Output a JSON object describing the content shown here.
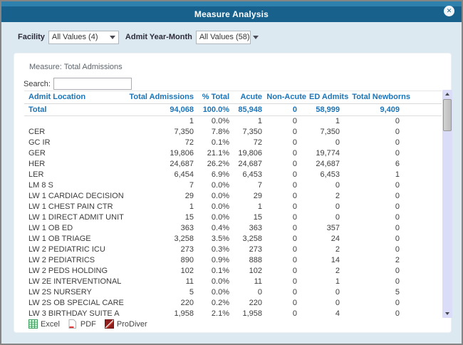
{
  "window": {
    "title": "Measure Analysis"
  },
  "filters": {
    "facility": {
      "label": "Facility",
      "value": "All Values (4)"
    },
    "admit_year_month": {
      "label": "Admit Year-Month",
      "value": "All Values (58)"
    }
  },
  "panel": {
    "measure_label": "Measure: Total Admissions",
    "search_label": "Search:",
    "search_value": ""
  },
  "table": {
    "columns": [
      "Admit Location",
      "Total Admissions",
      "% Total",
      "Acute",
      "Non-Acute",
      "ED Admits",
      "Total Newborns"
    ],
    "total_row": [
      "Total",
      "94,068",
      "100.0%",
      "85,948",
      "0",
      "58,999",
      "9,409"
    ],
    "rows": [
      [
        "",
        "1",
        "0.0%",
        "1",
        "0",
        "1",
        "0"
      ],
      [
        "CER",
        "7,350",
        "7.8%",
        "7,350",
        "0",
        "7,350",
        "0"
      ],
      [
        "GC IR",
        "72",
        "0.1%",
        "72",
        "0",
        "0",
        "0"
      ],
      [
        "GER",
        "19,806",
        "21.1%",
        "19,806",
        "0",
        "19,774",
        "0"
      ],
      [
        "HER",
        "24,687",
        "26.2%",
        "24,687",
        "0",
        "24,687",
        "6"
      ],
      [
        "LER",
        "6,454",
        "6.9%",
        "6,453",
        "0",
        "6,453",
        "1"
      ],
      [
        "LM 8 S",
        "7",
        "0.0%",
        "7",
        "0",
        "0",
        "0"
      ],
      [
        "LW 1 CARDIAC DECISION",
        "29",
        "0.0%",
        "29",
        "0",
        "2",
        "0"
      ],
      [
        "LW 1 CHEST PAIN CTR",
        "1",
        "0.0%",
        "1",
        "0",
        "0",
        "0"
      ],
      [
        "LW 1 DIRECT ADMIT UNIT",
        "15",
        "0.0%",
        "15",
        "0",
        "0",
        "0"
      ],
      [
        "LW 1 OB ED",
        "363",
        "0.4%",
        "363",
        "0",
        "357",
        "0"
      ],
      [
        "LW 1 OB TRIAGE",
        "3,258",
        "3.5%",
        "3,258",
        "0",
        "24",
        "0"
      ],
      [
        "LW 2 PEDIATRIC ICU",
        "273",
        "0.3%",
        "273",
        "0",
        "2",
        "0"
      ],
      [
        "LW 2 PEDIATRICS",
        "890",
        "0.9%",
        "888",
        "0",
        "14",
        "2"
      ],
      [
        "LW 2 PEDS HOLDING",
        "102",
        "0.1%",
        "102",
        "0",
        "2",
        "0"
      ],
      [
        "LW 2E INTERVENTIONAL",
        "11",
        "0.0%",
        "11",
        "0",
        "1",
        "0"
      ],
      [
        "LW 2S NURSERY",
        "5",
        "0.0%",
        "0",
        "0",
        "0",
        "5"
      ],
      [
        "LW 2S OB SPECIAL CARE",
        "220",
        "0.2%",
        "220",
        "0",
        "0",
        "0"
      ],
      [
        "LW 3 BIRTHDAY SUITE A",
        "1,958",
        "2.1%",
        "1,958",
        "0",
        "4",
        "0"
      ]
    ]
  },
  "export": {
    "excel_label": "Excel",
    "pdf_label": "PDF",
    "prodiver_label": "ProDiver"
  },
  "colors": {
    "titlebar": "#17618c",
    "titlebar_accent": "#2e81ad",
    "dialog_background": "#dde9f1",
    "header_blue": "#1b74b8",
    "scrollbar_track": "#dbdcf8"
  }
}
